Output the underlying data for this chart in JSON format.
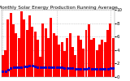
{
  "title": "Monthly Solar Energy Production Running Average",
  "bar_values": [
    3.2,
    4.0,
    8.5,
    9.5,
    7.8,
    6.5,
    5.8,
    9.8,
    8.5,
    7.0,
    9.2,
    7.5,
    6.8,
    5.5,
    3.0,
    8.0,
    7.2,
    5.8,
    8.8,
    6.5,
    6.2,
    4.8,
    5.2,
    3.8,
    5.8,
    6.5,
    4.5,
    3.2,
    6.2,
    5.5,
    4.2,
    7.0,
    7.8,
    5.5,
    5.8,
    4.0,
    4.8,
    5.5,
    5.2,
    7.0,
    8.0,
    5.8
  ],
  "avg_values": [
    0.8,
    0.9,
    1.1,
    1.3,
    1.4,
    1.4,
    1.4,
    1.5,
    1.6,
    1.6,
    1.7,
    1.7,
    1.6,
    1.5,
    1.4,
    1.5,
    1.5,
    1.4,
    1.5,
    1.5,
    1.5,
    1.4,
    1.4,
    1.3,
    1.3,
    1.3,
    1.3,
    1.2,
    1.2,
    1.2,
    1.2,
    1.2,
    1.3,
    1.2,
    1.2,
    1.2,
    1.2,
    1.2,
    1.2,
    1.2,
    1.3,
    1.3
  ],
  "bar_color": "#ff0000",
  "avg_color": "#0000cc",
  "background_color": "#ffffff",
  "grid_color": "#aaaaaa",
  "ylim": [
    0,
    10
  ],
  "ytick_labels": [
    "0",
    "2",
    "4",
    "6",
    "8",
    "10"
  ],
  "ytick_values": [
    0,
    2,
    4,
    6,
    8,
    10
  ],
  "ylabel_fontsize": 4.0,
  "title_fontsize": 4.2,
  "n_bars": 42
}
